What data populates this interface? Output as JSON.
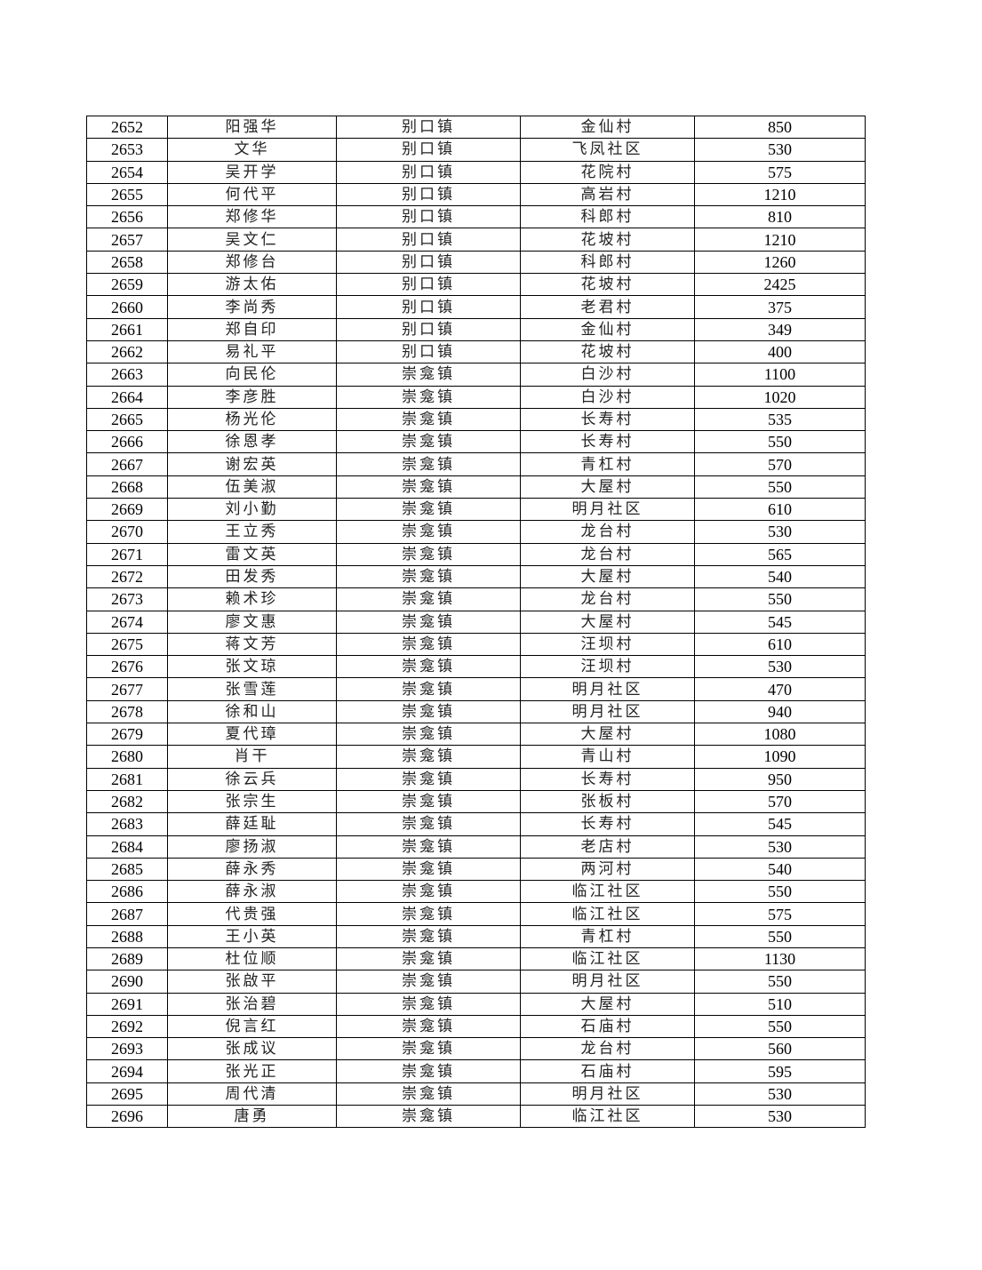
{
  "table": {
    "rows": [
      [
        "2652",
        "阳强华",
        "别口镇",
        "金仙村",
        "850"
      ],
      [
        "2653",
        "文华",
        "别口镇",
        "飞凤社区",
        "530"
      ],
      [
        "2654",
        "吴开学",
        "别口镇",
        "花院村",
        "575"
      ],
      [
        "2655",
        "何代平",
        "别口镇",
        "高岩村",
        "1210"
      ],
      [
        "2656",
        "郑修华",
        "别口镇",
        "科郎村",
        "810"
      ],
      [
        "2657",
        "吴文仁",
        "别口镇",
        "花坡村",
        "1210"
      ],
      [
        "2658",
        "郑修台",
        "别口镇",
        "科郎村",
        "1260"
      ],
      [
        "2659",
        "游太佑",
        "别口镇",
        "花坡村",
        "2425"
      ],
      [
        "2660",
        "李尚秀",
        "别口镇",
        "老君村",
        "375"
      ],
      [
        "2661",
        "郑自印",
        "别口镇",
        "金仙村",
        "349"
      ],
      [
        "2662",
        "易礼平",
        "别口镇",
        "花坡村",
        "400"
      ],
      [
        "2663",
        "向民伦",
        "崇龛镇",
        "白沙村",
        "1100"
      ],
      [
        "2664",
        "李彦胜",
        "崇龛镇",
        "白沙村",
        "1020"
      ],
      [
        "2665",
        "杨光伦",
        "崇龛镇",
        "长寿村",
        "535"
      ],
      [
        "2666",
        "徐恩孝",
        "崇龛镇",
        "长寿村",
        "550"
      ],
      [
        "2667",
        "谢宏英",
        "崇龛镇",
        "青杠村",
        "570"
      ],
      [
        "2668",
        "伍美淑",
        "崇龛镇",
        "大屋村",
        "550"
      ],
      [
        "2669",
        "刘小勤",
        "崇龛镇",
        "明月社区",
        "610"
      ],
      [
        "2670",
        "王立秀",
        "崇龛镇",
        "龙台村",
        "530"
      ],
      [
        "2671",
        "雷文英",
        "崇龛镇",
        "龙台村",
        "565"
      ],
      [
        "2672",
        "田发秀",
        "崇龛镇",
        "大屋村",
        "540"
      ],
      [
        "2673",
        "赖术珍",
        "崇龛镇",
        "龙台村",
        "550"
      ],
      [
        "2674",
        "廖文惠",
        "崇龛镇",
        "大屋村",
        "545"
      ],
      [
        "2675",
        "蒋文芳",
        "崇龛镇",
        "汪坝村",
        "610"
      ],
      [
        "2676",
        "张文琼",
        "崇龛镇",
        "汪坝村",
        "530"
      ],
      [
        "2677",
        "张雪莲",
        "崇龛镇",
        "明月社区",
        "470"
      ],
      [
        "2678",
        "徐和山",
        "崇龛镇",
        "明月社区",
        "940"
      ],
      [
        "2679",
        "夏代璋",
        "崇龛镇",
        "大屋村",
        "1080"
      ],
      [
        "2680",
        "肖干",
        "崇龛镇",
        "青山村",
        "1090"
      ],
      [
        "2681",
        "徐云兵",
        "崇龛镇",
        "长寿村",
        "950"
      ],
      [
        "2682",
        "张宗生",
        "崇龛镇",
        "张板村",
        "570"
      ],
      [
        "2683",
        "薛廷耻",
        "崇龛镇",
        "长寿村",
        "545"
      ],
      [
        "2684",
        "廖扬淑",
        "崇龛镇",
        "老店村",
        "530"
      ],
      [
        "2685",
        "薛永秀",
        "崇龛镇",
        "两河村",
        "540"
      ],
      [
        "2686",
        "薛永淑",
        "崇龛镇",
        "临江社区",
        "550"
      ],
      [
        "2687",
        "代贵强",
        "崇龛镇",
        "临江社区",
        "575"
      ],
      [
        "2688",
        "王小英",
        "崇龛镇",
        "青杠村",
        "550"
      ],
      [
        "2689",
        "杜位顺",
        "崇龛镇",
        "临江社区",
        "1130"
      ],
      [
        "2690",
        "张啟平",
        "崇龛镇",
        "明月社区",
        "550"
      ],
      [
        "2691",
        "张治碧",
        "崇龛镇",
        "大屋村",
        "510"
      ],
      [
        "2692",
        "倪言红",
        "崇龛镇",
        "石庙村",
        "550"
      ],
      [
        "2693",
        "张成议",
        "崇龛镇",
        "龙台村",
        "560"
      ],
      [
        "2694",
        "张光正",
        "崇龛镇",
        "石庙村",
        "595"
      ],
      [
        "2695",
        "周代清",
        "崇龛镇",
        "明月社区",
        "530"
      ],
      [
        "2696",
        "唐勇",
        "崇龛镇",
        "临江社区",
        "530"
      ]
    ]
  }
}
